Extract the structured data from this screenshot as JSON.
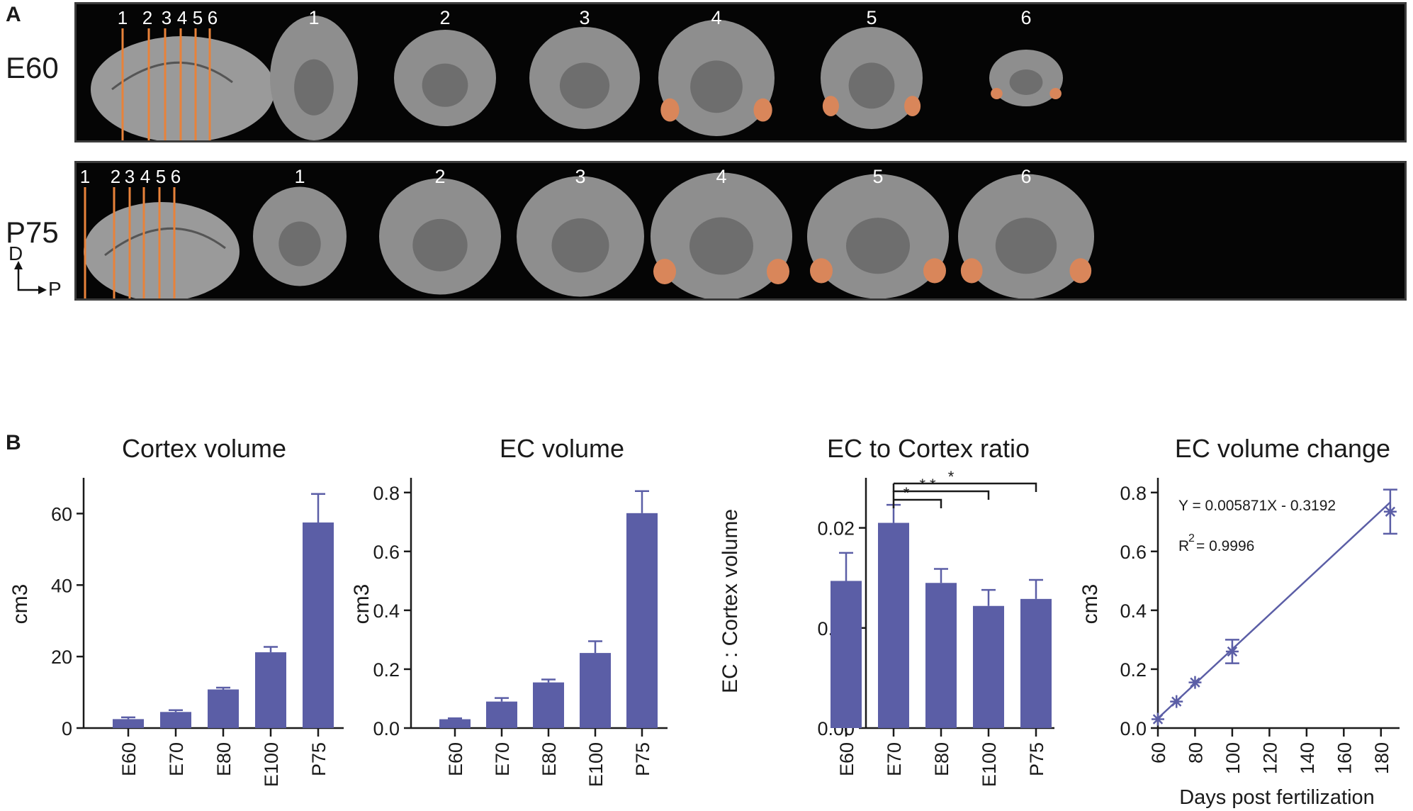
{
  "panel_a": {
    "letter": "A",
    "rows": [
      {
        "label": "E60",
        "cut_labels": [
          "1",
          "2",
          "3",
          "4",
          "5",
          "6"
        ],
        "section_labels": [
          "1",
          "2",
          "3",
          "4",
          "5",
          "6"
        ]
      },
      {
        "label": "P75",
        "cut_labels": [
          "1",
          "2",
          "3",
          "4",
          "5",
          "6"
        ],
        "section_labels": [
          "1",
          "2",
          "3",
          "4",
          "5",
          "6"
        ]
      }
    ],
    "orientation": {
      "dorsal": "D",
      "posterior": "P"
    },
    "colors": {
      "cut_line": "#e8823a",
      "ec_highlight": "#d9865a",
      "background": "#050505"
    }
  },
  "panel_b": {
    "letter": "B"
  },
  "chart_data": [
    {
      "type": "bar",
      "title": "Cortex volume",
      "xlabel": "",
      "ylabel": "cm3",
      "categories": [
        "E60",
        "E70",
        "E80",
        "E100",
        "P75"
      ],
      "values": [
        2.5,
        4.5,
        10.8,
        21.2,
        57.5
      ],
      "errors": [
        0.5,
        0.5,
        0.5,
        1.5,
        8.0
      ],
      "ylim": [
        0,
        70
      ],
      "yticks": [
        0,
        20,
        40,
        60
      ],
      "color": "#5b5ea6"
    },
    {
      "type": "bar",
      "title": "EC volume",
      "xlabel": "",
      "ylabel": "cm3",
      "categories": [
        "E60",
        "E70",
        "E80",
        "E100",
        "P75"
      ],
      "values": [
        0.03,
        0.09,
        0.155,
        0.255,
        0.73
      ],
      "errors": [
        0.003,
        0.012,
        0.01,
        0.04,
        0.075
      ],
      "ylim": [
        0,
        0.85
      ],
      "yticks": [
        "0.0",
        "0.2",
        "0.4",
        "0.6",
        "0.8"
      ],
      "color": "#5b5ea6"
    },
    {
      "type": "bar",
      "title": "EC to Cortex ratio",
      "xlabel": "",
      "ylabel": "EC : Cortex volume",
      "categories": [
        "E60",
        "E70",
        "E80",
        "E100",
        "P75"
      ],
      "values": [
        0.0147,
        0.0205,
        0.0145,
        0.0122,
        0.0129
      ],
      "errors": [
        0.0028,
        0.0018,
        0.0014,
        0.0016,
        0.0019
      ],
      "ylim": [
        0,
        0.025
      ],
      "yticks": [
        "0.00",
        "0.01",
        "0.02"
      ],
      "significance": [
        {
          "from": "E70",
          "to": "E80",
          "label": "*"
        },
        {
          "from": "E70",
          "to": "E100",
          "label": "**"
        },
        {
          "from": "E70",
          "to": "P75",
          "label": "*"
        }
      ],
      "color": "#5b5ea6"
    },
    {
      "type": "scatter",
      "title": "EC volume change",
      "xlabel": "Days post fertilization",
      "ylabel": "cm3",
      "x": [
        60,
        70,
        80,
        100,
        185
      ],
      "y": [
        0.03,
        0.09,
        0.155,
        0.26,
        0.735
      ],
      "errors": [
        0.003,
        0.012,
        0.01,
        0.04,
        0.075
      ],
      "xlim": [
        60,
        190
      ],
      "ylim": [
        0,
        0.85
      ],
      "xticks": [
        "60",
        "80",
        "100",
        "120",
        "140",
        "160",
        "180"
      ],
      "yticks": [
        "0.0",
        "0.2",
        "0.4",
        "0.6",
        "0.8"
      ],
      "fit": {
        "slope": 0.005871,
        "intercept": -0.3192
      },
      "equation": "Y = 0.005871X - 0.3192",
      "r2_prefix": "R",
      "r2_exponent": "2",
      "r2_value": "= 0.9996",
      "color": "#5b5ea6"
    }
  ]
}
